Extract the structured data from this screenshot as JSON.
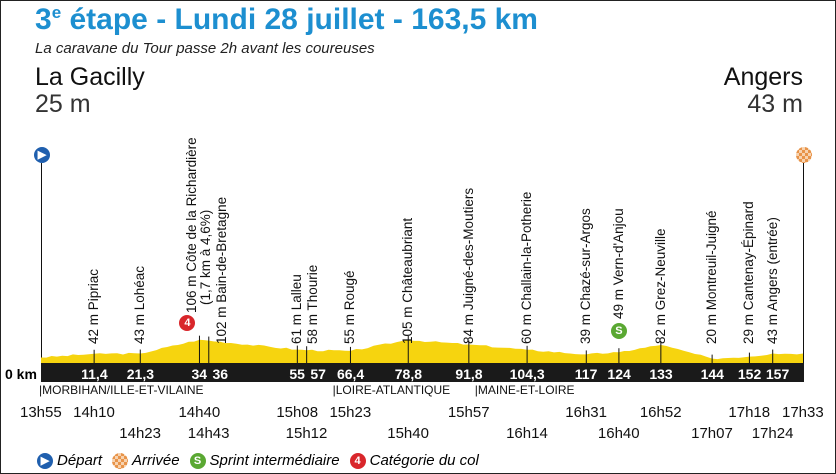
{
  "title": {
    "prefix": "3",
    "sup": "e",
    "rest": " étape - Lundi 28 juillet - 163,5 km"
  },
  "subtitle": "La caravane du Tour passe 2h avant les coureuses",
  "start": {
    "city": "La Gacilly",
    "altitude": "25 m"
  },
  "finish": {
    "city": "Angers",
    "altitude": "43 m"
  },
  "zero_label": "0 km",
  "total_km": 163.5,
  "points": [
    {
      "km": 11.4,
      "km_label": "11,4",
      "alt": 42,
      "label": "42 m Pipriac"
    },
    {
      "km": 21.3,
      "km_label": "21,3",
      "alt": 43,
      "label": "43 m Lohéac"
    },
    {
      "km": 34,
      "km_label": "34",
      "alt": 106,
      "label": "106 m Côte de la Richardière",
      "label2": "(1,7 km à 4,6%)",
      "climb": "4"
    },
    {
      "km": 36,
      "km_label": "36",
      "alt": 102,
      "label": "102 m Bain-de-Bretagne"
    },
    {
      "km": 55,
      "km_label": "55",
      "alt": 61,
      "label": "61 m Lalleu"
    },
    {
      "km": 57,
      "km_label": "57",
      "alt": 58,
      "label": "58 m Thourie"
    },
    {
      "km": 66.4,
      "km_label": "66,4",
      "alt": 55,
      "label": "55 m Rougé"
    },
    {
      "km": 78.8,
      "km_label": "78,8",
      "alt": 105,
      "label": "105 m Châteaubriant"
    },
    {
      "km": 91.8,
      "km_label": "91,8",
      "alt": 84,
      "label": "84 m Juigné-des-Moutiers"
    },
    {
      "km": 104.3,
      "km_label": "104,3",
      "alt": 60,
      "label": "60 m Challain-la-Potherie"
    },
    {
      "km": 117,
      "km_label": "117",
      "alt": 39,
      "label": "39 m Chazé-sur-Argos"
    },
    {
      "km": 124,
      "km_label": "124",
      "alt": 49,
      "label": "49 m Vern-d'Anjou",
      "sprint": "S"
    },
    {
      "km": 133,
      "km_label": "133",
      "alt": 82,
      "label": "82 m Grez-Neuville"
    },
    {
      "km": 144,
      "km_label": "144",
      "alt": 20,
      "label": "20 m Montreuil-Juigné"
    },
    {
      "km": 152,
      "km_label": "152",
      "alt": 29,
      "label": "29 m Cantenay-Épinard"
    },
    {
      "km": 157,
      "km_label": "157",
      "alt": 43,
      "label": "43 m Angers (entrée)"
    }
  ],
  "departments": [
    {
      "km": 0,
      "label": "|MORBIHAN/ILLE-ET-VILAINE"
    },
    {
      "km": 63,
      "label": "|LOIRE-ATLANTIQUE"
    },
    {
      "km": 93.5,
      "label": "|MAINE-ET-LOIRE"
    }
  ],
  "times": [
    {
      "km": 0,
      "t": "13h55",
      "row": 1
    },
    {
      "km": 11.4,
      "t": "14h10",
      "row": 1
    },
    {
      "km": 21.3,
      "t": "14h23",
      "row": 2
    },
    {
      "km": 34,
      "t": "14h40",
      "row": 1
    },
    {
      "km": 36,
      "t": "14h43",
      "row": 2
    },
    {
      "km": 55,
      "t": "15h08",
      "row": 1
    },
    {
      "km": 57,
      "t": "15h12",
      "row": 2
    },
    {
      "km": 66.4,
      "t": "15h23",
      "row": 1
    },
    {
      "km": 78.8,
      "t": "15h40",
      "row": 2
    },
    {
      "km": 91.8,
      "t": "15h57",
      "row": 1
    },
    {
      "km": 104.3,
      "t": "16h14",
      "row": 2
    },
    {
      "km": 117,
      "t": "16h31",
      "row": 1
    },
    {
      "km": 124,
      "t": "16h40",
      "row": 2
    },
    {
      "km": 133,
      "t": "16h52",
      "row": 1
    },
    {
      "km": 144,
      "t": "17h07",
      "row": 2
    },
    {
      "km": 152,
      "t": "17h18",
      "row": 1
    },
    {
      "km": 157,
      "t": "17h24",
      "row": 2
    },
    {
      "km": 163.5,
      "t": "17h33",
      "row": 1
    }
  ],
  "legend": {
    "depart": "Départ",
    "arrivee": "Arrivée",
    "sprint": "Sprint intermédiaire",
    "col": "Catégorie du col",
    "sprint_letter": "S",
    "col_number": "4"
  },
  "colors": {
    "title": "#1d8fd0",
    "profile": "#f6d40f",
    "band": "#1a1a1a",
    "depart": "#1f5fae",
    "arrivee": "#e8944a",
    "sprint": "#5aa832",
    "col": "#d9262b"
  }
}
